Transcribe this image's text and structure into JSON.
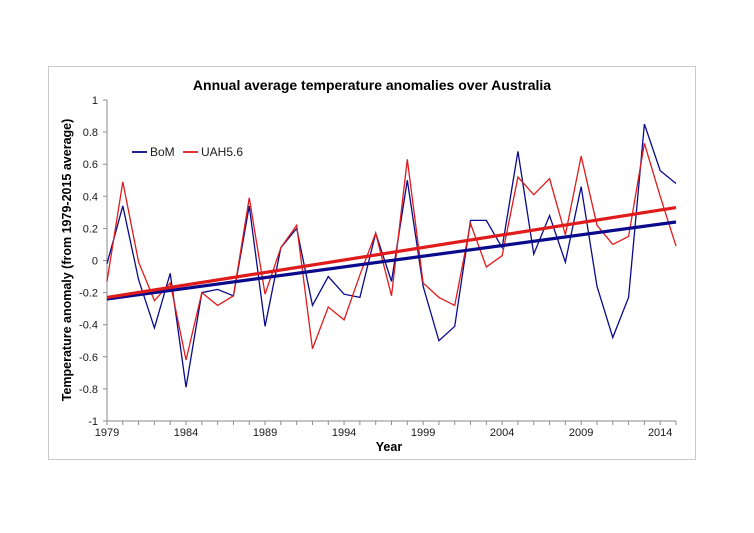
{
  "chart_data": {
    "type": "line",
    "title": "Annual average temperature anomalies over Australia",
    "xlabel": "Year",
    "ylabel": "Temperature anomaly (from 1979-2015 average)",
    "xlim": [
      1979,
      2015
    ],
    "ylim": [
      -1,
      1
    ],
    "x_ticks": [
      "1979",
      "1984",
      "1989",
      "1994",
      "1999",
      "2004",
      "2009",
      "2014"
    ],
    "y_ticks": [
      "1",
      "0.8",
      "0.6",
      "0.4",
      "0.2",
      "0",
      "-0.2",
      "-0.4",
      "-0.6",
      "-0.8",
      "-1"
    ],
    "legend_position": "upper-left",
    "grid": false,
    "x": [
      1979,
      1980,
      1981,
      1982,
      1983,
      1984,
      1985,
      1986,
      1987,
      1988,
      1989,
      1990,
      1991,
      1992,
      1993,
      1994,
      1995,
      1996,
      1997,
      1998,
      1999,
      2000,
      2001,
      2002,
      2003,
      2004,
      2005,
      2006,
      2007,
      2008,
      2009,
      2010,
      2011,
      2012,
      2013,
      2014,
      2015
    ],
    "series": [
      {
        "name": "BoM",
        "color": "#0a0a8c",
        "values": [
          -0.02,
          0.34,
          -0.12,
          -0.42,
          -0.08,
          -0.79,
          -0.2,
          -0.18,
          -0.22,
          0.34,
          -0.41,
          0.08,
          0.2,
          -0.28,
          -0.1,
          -0.21,
          -0.23,
          0.17,
          -0.13,
          0.5,
          -0.16,
          -0.5,
          -0.41,
          0.25,
          0.25,
          0.08,
          0.68,
          0.04,
          0.28,
          -0.01,
          0.46,
          -0.16,
          -0.48,
          -0.23,
          0.85,
          0.56,
          0.48
        ]
      },
      {
        "name": "UAH5.6",
        "color": "#e01b1b",
        "values": [
          -0.13,
          0.49,
          -0.01,
          -0.25,
          -0.14,
          -0.62,
          -0.2,
          -0.28,
          -0.22,
          0.39,
          -0.21,
          0.08,
          0.22,
          -0.55,
          -0.29,
          -0.37,
          -0.09,
          0.17,
          -0.22,
          0.63,
          -0.14,
          -0.23,
          -0.28,
          0.23,
          -0.04,
          0.03,
          0.52,
          0.41,
          0.51,
          0.16,
          0.65,
          0.22,
          0.1,
          0.15,
          0.73,
          0.4,
          0.09
        ]
      }
    ],
    "trendlines": [
      {
        "series": "BoM",
        "color": "#0a0a8c",
        "start": -0.24,
        "end": 0.24
      },
      {
        "series": "UAH5.6",
        "color": "#e01b1b",
        "start": -0.23,
        "end": 0.33
      }
    ]
  }
}
